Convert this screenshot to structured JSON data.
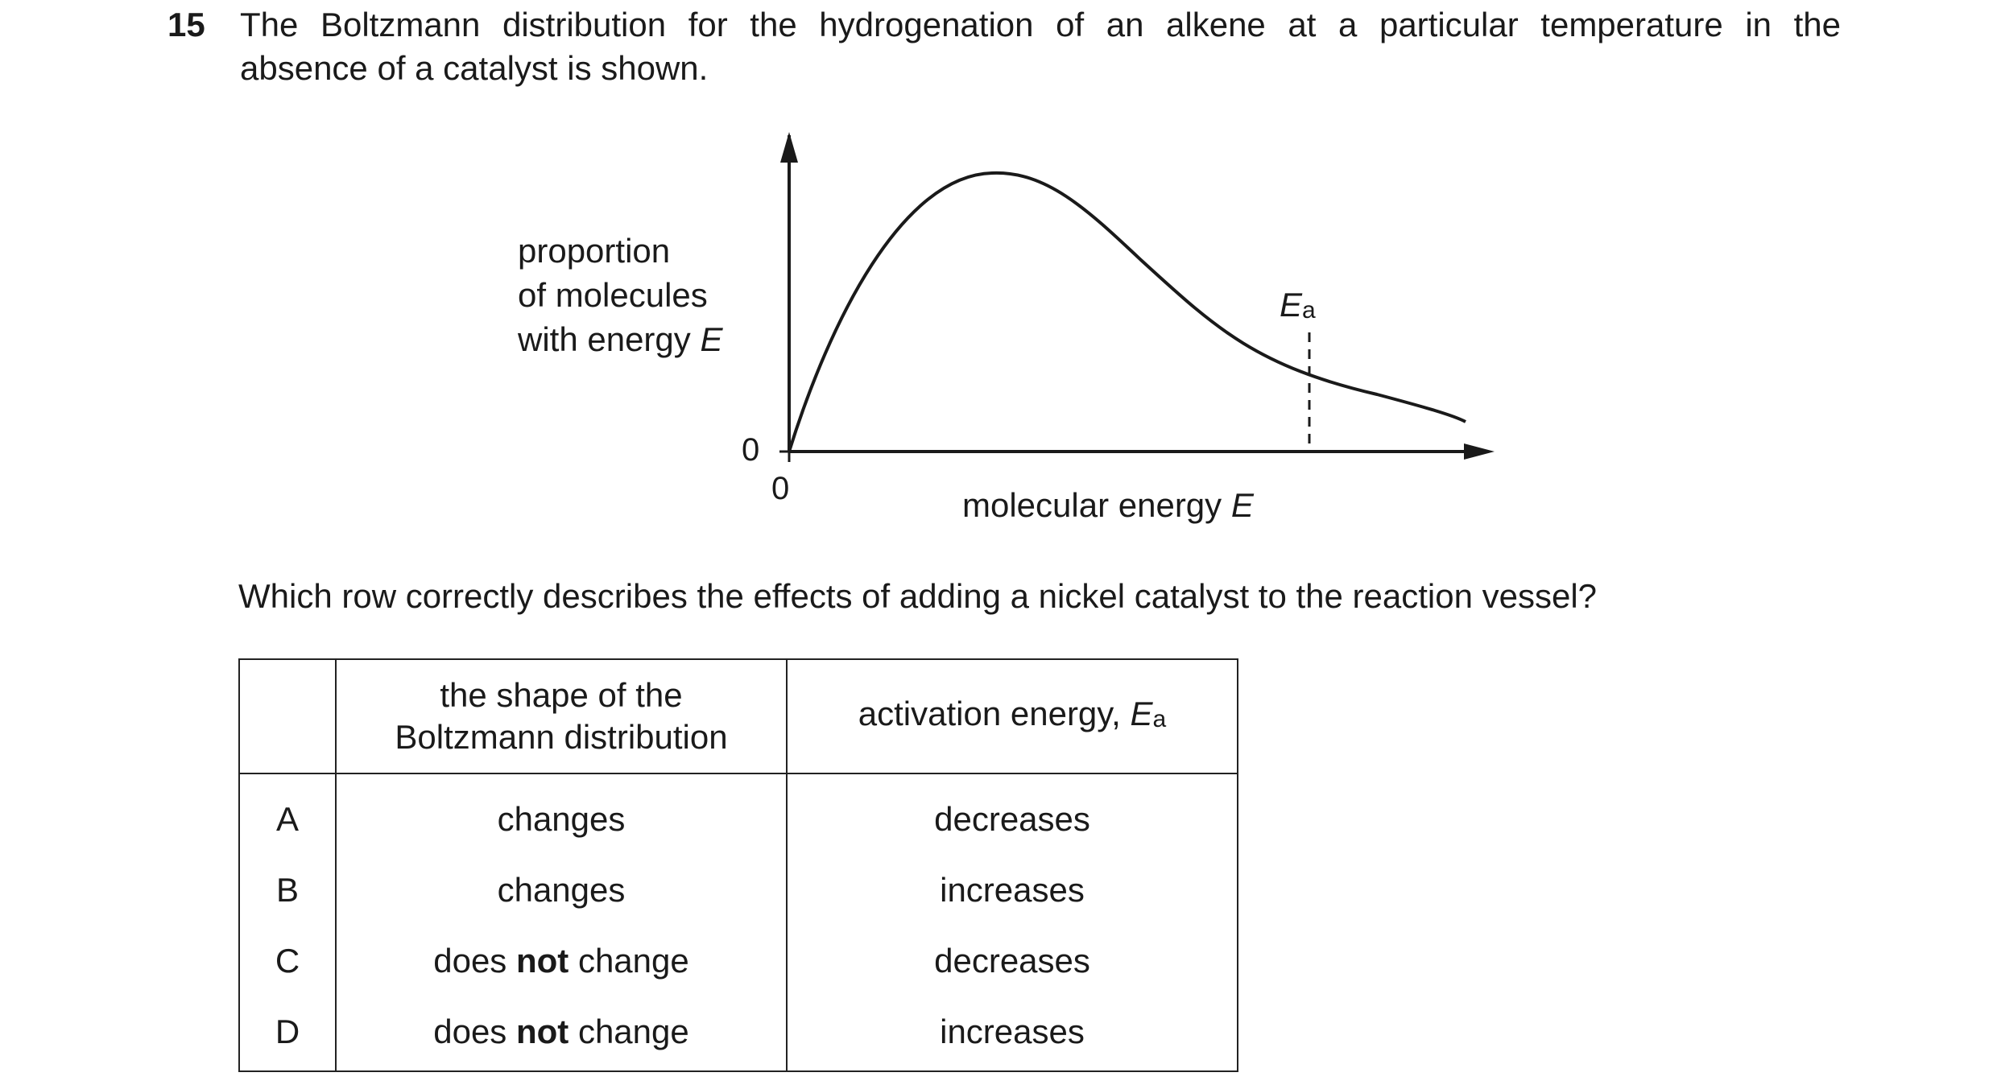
{
  "question": {
    "number": "15",
    "stem_line1": "The Boltzmann distribution for the hydrogenation of an alkene at a particular temperature in the",
    "stem_line2": "absence of a catalyst is shown.",
    "prompt": "Which row correctly describes the effects of adding a nickel catalyst to the reaction vessel?"
  },
  "graph": {
    "y_axis_label_lines": [
      "proportion",
      "of molecules",
      "with energy "
    ],
    "y_axis_label_var": "E",
    "x_axis_label": "molecular energy ",
    "x_axis_label_var": "E",
    "y_origin_tick": "0",
    "x_origin_tick": "0",
    "activation_marker": "E",
    "activation_marker_sub": "a"
  },
  "table": {
    "headers": {
      "shape_line1": "the shape of the",
      "shape_line2": "Boltzmann distribution",
      "activation": "activation energy, ",
      "activation_var": "E",
      "activation_sub": "a"
    },
    "rows": [
      {
        "letter": "A",
        "shape_pre": "changes",
        "shape_bold": "",
        "shape_post": "",
        "activation": "decreases"
      },
      {
        "letter": "B",
        "shape_pre": "changes",
        "shape_bold": "",
        "shape_post": "",
        "activation": "increases"
      },
      {
        "letter": "C",
        "shape_pre": "does ",
        "shape_bold": "not",
        "shape_post": " change",
        "activation": "decreases"
      },
      {
        "letter": "D",
        "shape_pre": "does ",
        "shape_bold": "not",
        "shape_post": " change",
        "activation": "increases"
      }
    ]
  }
}
